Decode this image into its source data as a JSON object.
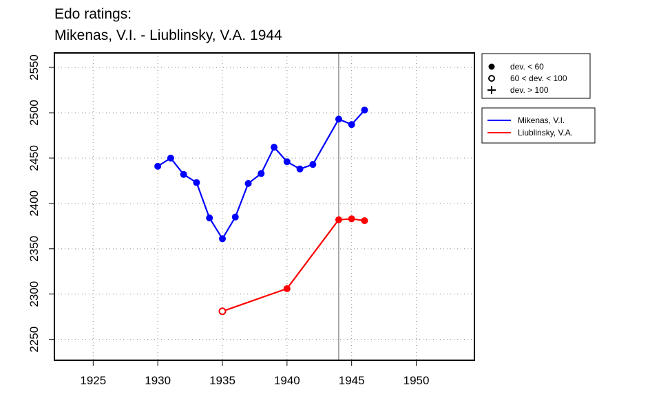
{
  "title_lines": [
    "Edo ratings:",
    "Mikenas, V.I. - Liublinsky, V.A. 1944"
  ],
  "chart_data": {
    "type": "line",
    "title": "Edo ratings:\nMikenas, V.I. - Liublinsky, V.A. 1944",
    "xlabel": "",
    "ylabel": "",
    "xlim": [
      1922,
      1954.5
    ],
    "ylim": [
      2227,
      2566
    ],
    "x_ticks": [
      1925,
      1930,
      1935,
      1940,
      1945,
      1950
    ],
    "y_ticks": [
      2250,
      2300,
      2350,
      2400,
      2450,
      2500,
      2550
    ],
    "grid": true,
    "vline_x": 1944,
    "series": [
      {
        "name": "Mikenas, V.I.",
        "color": "#0000ff",
        "points": [
          {
            "x": 1930,
            "y": 2441,
            "marker": "filled"
          },
          {
            "x": 1931,
            "y": 2450,
            "marker": "filled"
          },
          {
            "x": 1932,
            "y": 2432,
            "marker": "filled"
          },
          {
            "x": 1933,
            "y": 2423,
            "marker": "filled"
          },
          {
            "x": 1934,
            "y": 2384,
            "marker": "filled"
          },
          {
            "x": 1935,
            "y": 2361,
            "marker": "filled"
          },
          {
            "x": 1936,
            "y": 2385,
            "marker": "filled"
          },
          {
            "x": 1937,
            "y": 2422,
            "marker": "filled"
          },
          {
            "x": 1938,
            "y": 2433,
            "marker": "filled"
          },
          {
            "x": 1939,
            "y": 2462,
            "marker": "filled"
          },
          {
            "x": 1940,
            "y": 2446,
            "marker": "filled"
          },
          {
            "x": 1941,
            "y": 2438,
            "marker": "filled"
          },
          {
            "x": 1942,
            "y": 2443,
            "marker": "filled"
          },
          {
            "x": 1944,
            "y": 2493,
            "marker": "filled"
          },
          {
            "x": 1945,
            "y": 2487,
            "marker": "filled"
          },
          {
            "x": 1946,
            "y": 2503,
            "marker": "filled"
          }
        ]
      },
      {
        "name": "Liublinsky, V.A.",
        "color": "#ff0000",
        "points": [
          {
            "x": 1935,
            "y": 2281,
            "marker": "open"
          },
          {
            "x": 1940,
            "y": 2306,
            "marker": "filled"
          },
          {
            "x": 1944,
            "y": 2382,
            "marker": "filled"
          },
          {
            "x": 1945,
            "y": 2383,
            "marker": "filled"
          },
          {
            "x": 1946,
            "y": 2381,
            "marker": "filled"
          }
        ]
      }
    ],
    "marker_legend": [
      {
        "symbol": "filled",
        "label": "dev. < 60"
      },
      {
        "symbol": "open",
        "label": "60 < dev. < 100"
      },
      {
        "symbol": "plus",
        "label": "dev. > 100"
      }
    ],
    "legend_position": "right"
  }
}
